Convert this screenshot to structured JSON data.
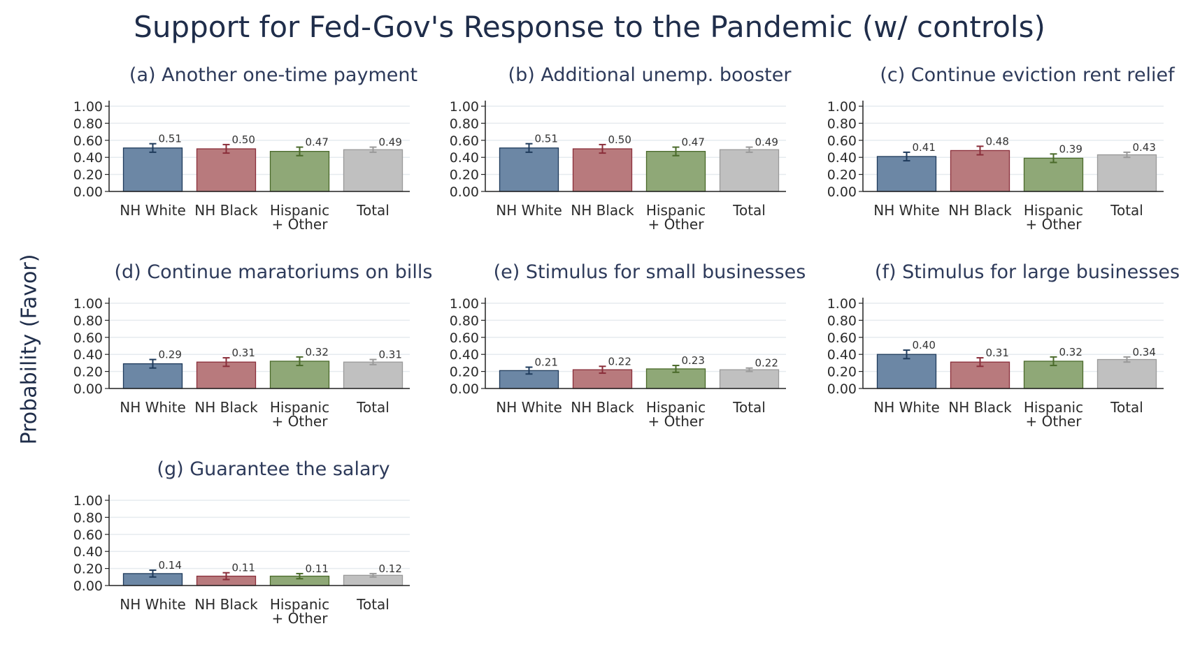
{
  "title": "Support for Fed-Gov's Response to the Pandemic (w/ controls)",
  "ylabel": "Probability (Favor)",
  "colors": {
    "NH White": "#6c87a5",
    "NH Black": "#b87a7d",
    "Hispanic + Other": "#8fa877",
    "Total": "#c0c0c0",
    "err_NH White": "#1f3b5c",
    "err_NH Black": "#8a2e3a",
    "err_Hispanic + Other": "#4a6a2a",
    "err_Total": "#9a9a9a",
    "grid": "#e6ebef",
    "axis": "#222222"
  },
  "chart_data": [
    {
      "type": "bar",
      "title": "(a) Another one-time payment",
      "categories": [
        "NH White",
        "NH Black",
        "Hispanic + Other",
        "Total"
      ],
      "values": [
        0.51,
        0.5,
        0.47,
        0.49
      ],
      "labels": [
        "0.51",
        "0.50",
        "0.47",
        "0.49"
      ],
      "err": [
        0.05,
        0.05,
        0.05,
        0.03
      ],
      "yticks": [
        "0.00",
        "0.20",
        "0.40",
        "0.60",
        "0.80",
        "1.00"
      ],
      "ylim": [
        0,
        1
      ]
    },
    {
      "type": "bar",
      "title": "(b) Additional unemp. booster",
      "categories": [
        "NH White",
        "NH Black",
        "Hispanic + Other",
        "Total"
      ],
      "values": [
        0.51,
        0.5,
        0.47,
        0.49
      ],
      "labels": [
        "0.51",
        "0.50",
        "0.47",
        "0.49"
      ],
      "err": [
        0.05,
        0.05,
        0.05,
        0.03
      ],
      "yticks": [
        "0.00",
        "0.20",
        "0.40",
        "0.60",
        "0.80",
        "1.00"
      ],
      "ylim": [
        0,
        1
      ]
    },
    {
      "type": "bar",
      "title": "(c) Continue eviction rent relief",
      "categories": [
        "NH White",
        "NH Black",
        "Hispanic + Other",
        "Total"
      ],
      "values": [
        0.41,
        0.48,
        0.39,
        0.43
      ],
      "labels": [
        "0.41",
        "0.48",
        "0.39",
        "0.43"
      ],
      "err": [
        0.05,
        0.05,
        0.05,
        0.03
      ],
      "yticks": [
        "0.00",
        "0.20",
        "0.40",
        "0.60",
        "0.80",
        "1.00"
      ],
      "ylim": [
        0,
        1
      ]
    },
    {
      "type": "bar",
      "title": "(d) Continue maratoriums on bills",
      "categories": [
        "NH White",
        "NH Black",
        "Hispanic + Other",
        "Total"
      ],
      "values": [
        0.29,
        0.31,
        0.32,
        0.31
      ],
      "labels": [
        "0.29",
        "0.31",
        "0.32",
        "0.31"
      ],
      "err": [
        0.05,
        0.05,
        0.05,
        0.03
      ],
      "yticks": [
        "0.00",
        "0.20",
        "0.40",
        "0.60",
        "0.80",
        "1.00"
      ],
      "ylim": [
        0,
        1
      ]
    },
    {
      "type": "bar",
      "title": "(e) Stimulus for small businesses",
      "categories": [
        "NH White",
        "NH Black",
        "Hispanic + Other",
        "Total"
      ],
      "values": [
        0.21,
        0.22,
        0.23,
        0.22
      ],
      "labels": [
        "0.21",
        "0.22",
        "0.23",
        "0.22"
      ],
      "err": [
        0.04,
        0.04,
        0.04,
        0.02
      ],
      "yticks": [
        "0.00",
        "0.20",
        "0.40",
        "0.60",
        "0.80",
        "1.00"
      ],
      "ylim": [
        0,
        1
      ]
    },
    {
      "type": "bar",
      "title": "(f) Stimulus for large businesses",
      "categories": [
        "NH White",
        "NH Black",
        "Hispanic + Other",
        "Total"
      ],
      "values": [
        0.4,
        0.31,
        0.32,
        0.34
      ],
      "labels": [
        "0.40",
        "0.31",
        "0.32",
        "0.34"
      ],
      "err": [
        0.05,
        0.05,
        0.05,
        0.03
      ],
      "yticks": [
        "0.00",
        "0.20",
        "0.40",
        "0.60",
        "0.80",
        "1.00"
      ],
      "ylim": [
        0,
        1
      ]
    },
    {
      "type": "bar",
      "title": "(g) Guarantee the salary",
      "categories": [
        "NH White",
        "NH Black",
        "Hispanic + Other",
        "Total"
      ],
      "values": [
        0.14,
        0.11,
        0.11,
        0.12
      ],
      "labels": [
        "0.14",
        "0.11",
        "0.11",
        "0.12"
      ],
      "err": [
        0.04,
        0.04,
        0.03,
        0.02
      ],
      "yticks": [
        "0.00",
        "0.20",
        "0.40",
        "0.60",
        "0.80",
        "1.00"
      ],
      "ylim": [
        0,
        1
      ]
    }
  ]
}
